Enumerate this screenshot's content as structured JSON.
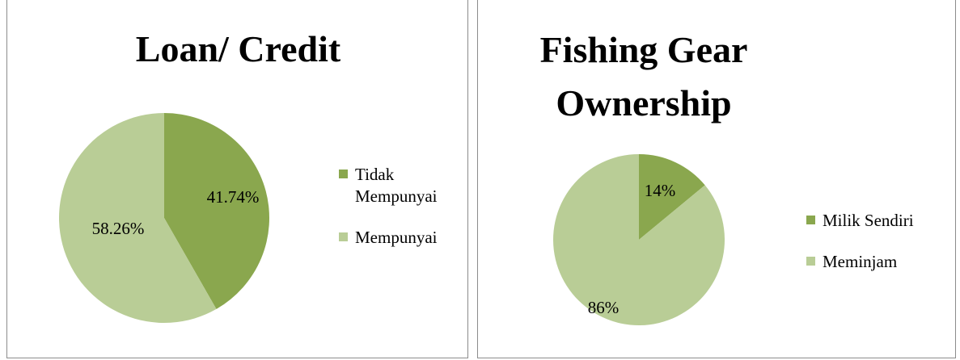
{
  "chart_data": [
    {
      "type": "pie",
      "title": "Loan/ Credit",
      "categories": [
        "Tidak Mempunyai",
        "Mempunyai"
      ],
      "values": [
        41.74,
        58.26
      ],
      "value_labels": [
        "41.74%",
        "58.26%"
      ],
      "colors": [
        "#8aa74e",
        "#b9cd96"
      ],
      "legend": "right"
    },
    {
      "type": "pie",
      "title": "Fishing Gear Ownership",
      "categories": [
        "Milik Sendiri",
        "Meminjam"
      ],
      "values": [
        14,
        86
      ],
      "value_labels": [
        "14%",
        "86%"
      ],
      "colors": [
        "#8aa74e",
        "#b9cd96"
      ],
      "legend": "right"
    }
  ]
}
